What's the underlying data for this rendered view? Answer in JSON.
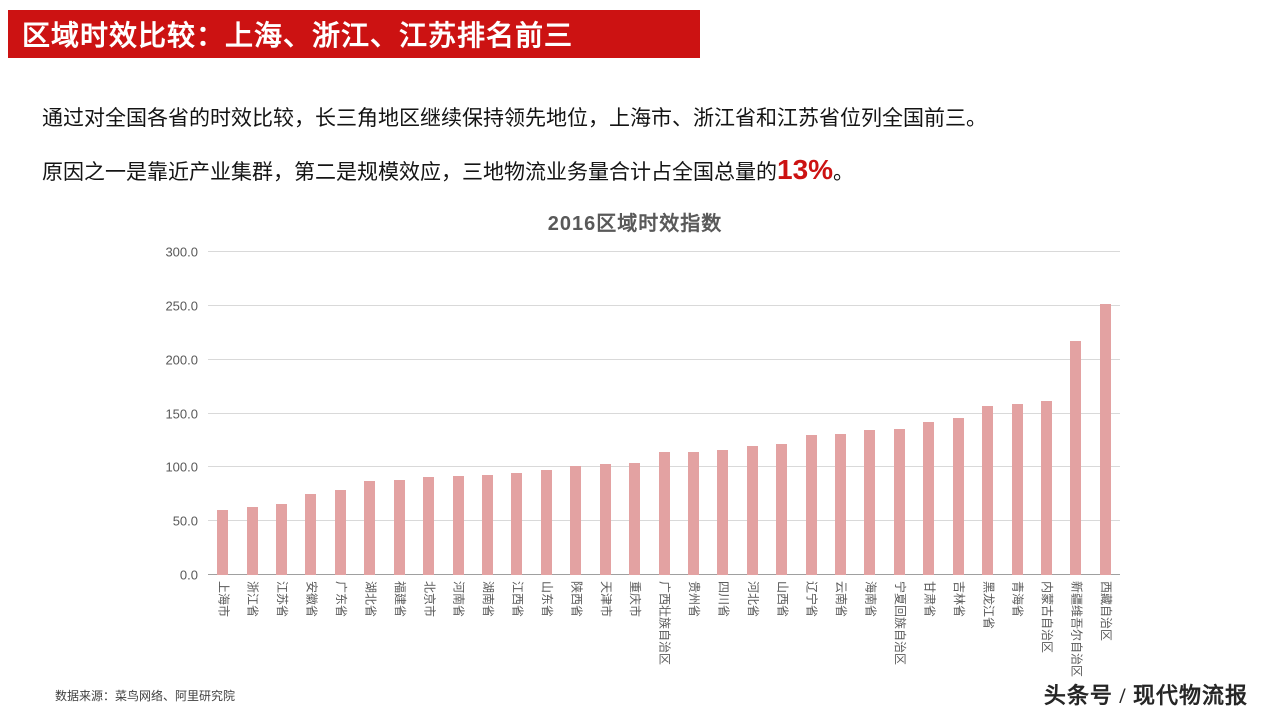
{
  "header": {
    "title": "区域时效比较：上海、浙江、江苏排名前三"
  },
  "body_text": {
    "line1": "通过对全国各省的时效比较，长三角地区继续保持领先地位，上海市、浙江省和江苏省位列全国前三。",
    "line2_prefix": "原因之一是靠近产业集群，第二是规模效应，三地物流业务量合计占全国总量的",
    "line2_highlight": "13%",
    "line2_suffix": "。"
  },
  "chart_data": {
    "type": "bar",
    "title": "2016区域时效指数",
    "categories": [
      "上海市",
      "浙江省",
      "江苏省",
      "安徽省",
      "广东省",
      "湖北省",
      "福建省",
      "北京市",
      "河南省",
      "湖南省",
      "江西省",
      "山东省",
      "陕西省",
      "天津市",
      "重庆市",
      "广西壮族自治区",
      "贵州省",
      "四川省",
      "河北省",
      "山西省",
      "辽宁省",
      "云南省",
      "海南省",
      "宁夏回族自治区",
      "甘肃省",
      "吉林省",
      "黑龙江省",
      "青海省",
      "内蒙古自治区",
      "新疆维吾尔自治区",
      "西藏自治区"
    ],
    "values": [
      60,
      63,
      66,
      75,
      79,
      87,
      88,
      91,
      92,
      93,
      95,
      98,
      101,
      103,
      104,
      114,
      114,
      116,
      120,
      122,
      130,
      131,
      135,
      136,
      142,
      146,
      157,
      159,
      162,
      217,
      252
    ],
    "xlabel": "",
    "ylabel": "",
    "ylim": [
      0,
      300
    ],
    "ytick_step": 50,
    "ytick_labels": [
      "0.0",
      "50.0",
      "100.0",
      "150.0",
      "200.0",
      "250.0",
      "300.0"
    ],
    "grid": true,
    "legend": "none",
    "bar_color": "#e3a2a2"
  },
  "footer": {
    "source": "数据来源：菜鸟网络、阿里研究院",
    "watermark": "头条号 / 现代物流报"
  },
  "colors": {
    "accent_red": "#cc1212",
    "bar": "#e3a2a2",
    "chart_text_gray": "#595959",
    "gridline": "#d9d9d9"
  }
}
